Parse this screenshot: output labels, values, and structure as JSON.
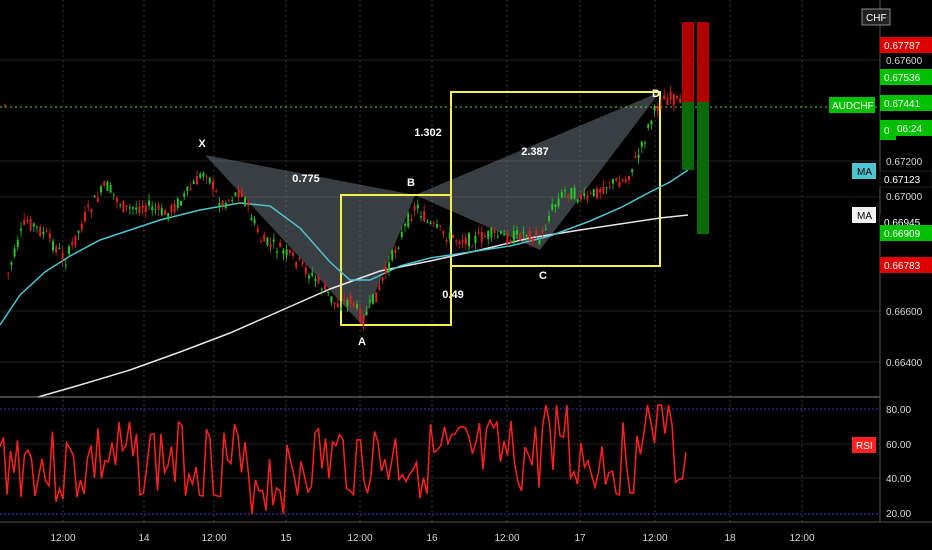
{
  "symbol": {
    "name": "AUDCHF",
    "currency_badge": "CHF",
    "price_tag": "0.67441",
    "countdown": "06:24"
  },
  "price_axis": {
    "ticks": [
      "0.67600",
      "0.67200",
      "0.67000",
      "0.66600",
      "0.66400"
    ],
    "tags": [
      {
        "text": "0.67536",
        "bg": "#00c000",
        "fg": "#ffffff"
      },
      {
        "text": "0.67123",
        "bg": "#000000",
        "fg": "#ffffff"
      },
      {
        "text": "0.66909",
        "bg": "#00c000",
        "fg": "#ffffff"
      },
      {
        "text": "0.66783",
        "bg": "#e00000",
        "fg": "#ffffff"
      }
    ],
    "partial_tags": [
      {
        "text": "0.67787",
        "bg": "#e00000"
      },
      {
        "text": "0",
        "bg": "#00c000"
      },
      {
        "text": "0.66945",
        "bg": "#000000"
      }
    ]
  },
  "indicators": {
    "ma1_label": "MA",
    "ma1_color": "#4fc3d0",
    "ma2_label": "MA",
    "ma2_color": "#e6e6e6",
    "rsi_label": "RSI",
    "rsi_color": "#ff2020"
  },
  "rsi_axis": {
    "ticks": [
      "80.00",
      "60.00",
      "40.00",
      "20.00"
    ]
  },
  "time_axis": {
    "ticks": [
      "12:00",
      "14",
      "12:00",
      "15",
      "12:00",
      "16",
      "12:00",
      "17",
      "12:00",
      "18",
      "12:00"
    ]
  },
  "pattern": {
    "points": {
      "X": "X",
      "A": "A",
      "B": "B",
      "C": "C",
      "D": "D"
    },
    "ratios": {
      "xab": "0.775",
      "abc": "0.49",
      "bcd_ratio": "1.302",
      "xad": "2.387"
    },
    "box_color": "#f5f04a",
    "fill_color": "#7e8a93"
  },
  "colors": {
    "bull": "#26c626",
    "bear": "#e02020",
    "grid": "#3a3a3a",
    "last_price_line": "#7ad13a"
  }
}
